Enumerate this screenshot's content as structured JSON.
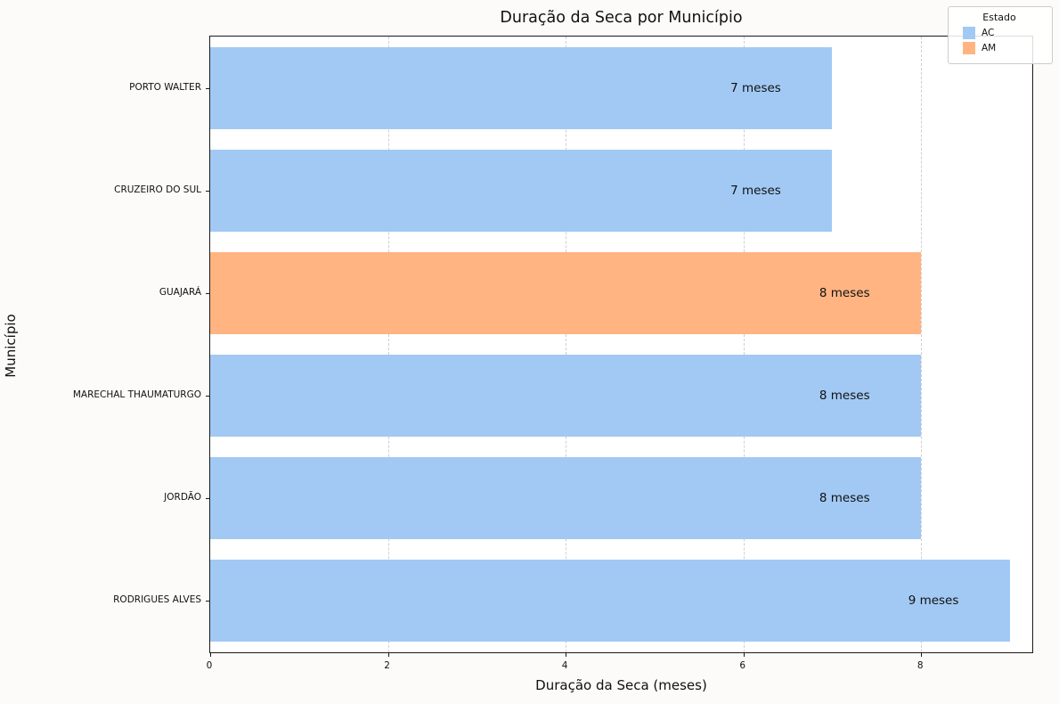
{
  "chart_data": {
    "type": "bar",
    "orientation": "horizontal",
    "title": "Duração da Seca por Município",
    "xlabel": "Duração da Seca (meses)",
    "ylabel": "Município",
    "xlim": [
      0,
      9.25
    ],
    "xticks": [
      0,
      2,
      4,
      6,
      8
    ],
    "grid": true,
    "grid_style": "dashed-vertical",
    "categories": [
      "PORTO WALTER",
      "CRUZEIRO DO SUL",
      "GUAJARÁ",
      "MARECHAL THAUMATURGO",
      "JORDÃO",
      "RODRIGUES ALVES"
    ],
    "values": [
      7,
      7,
      8,
      8,
      8,
      9
    ],
    "states": [
      "AC",
      "AC",
      "AM",
      "AC",
      "AC",
      "AC"
    ],
    "bar_labels": [
      "7 meses",
      "7 meses",
      "8 meses",
      "8 meses",
      "8 meses",
      "9 meses"
    ],
    "colors": {
      "AC": "#a1c9f4",
      "AM": "#ffb482"
    },
    "legend": {
      "title": "Estado",
      "position": "upper right",
      "entries": [
        {
          "label": "AC",
          "color": "#a1c9f4"
        },
        {
          "label": "AM",
          "color": "#ffb482"
        }
      ]
    }
  }
}
